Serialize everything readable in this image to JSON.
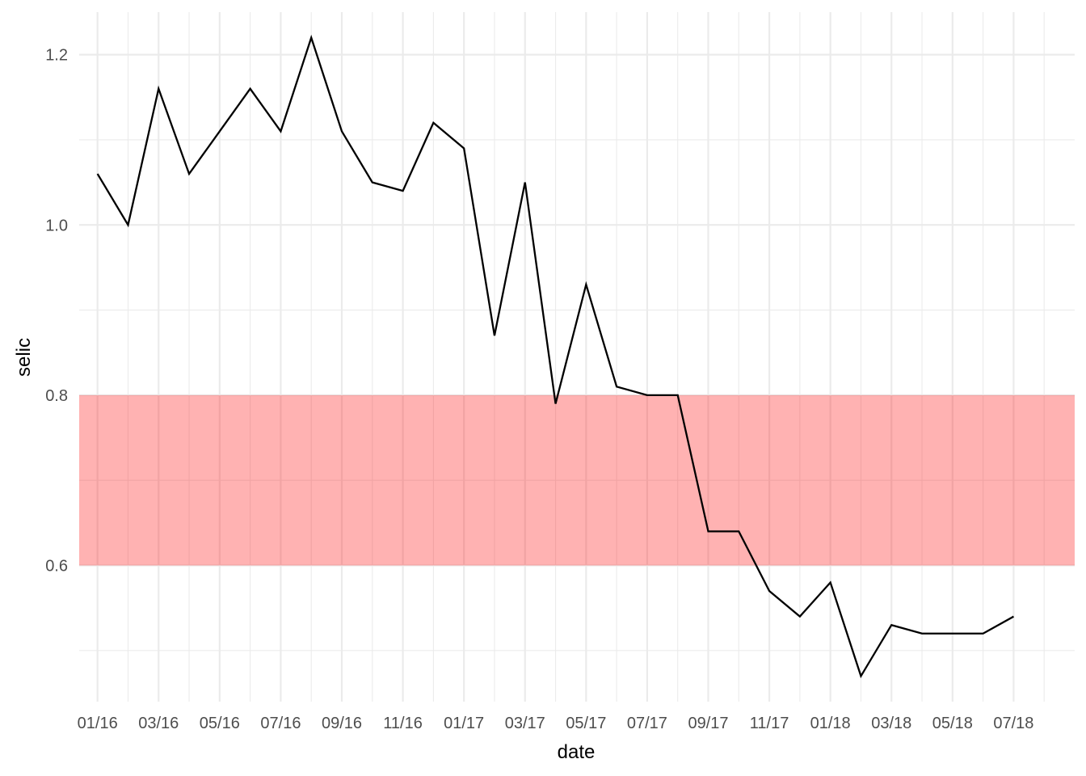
{
  "chart_data": {
    "type": "line",
    "xlabel": "date",
    "ylabel": "selic",
    "ylim": [
      0.44,
      1.25
    ],
    "xlim": [
      "2015-12",
      "2018-08"
    ],
    "y_ticks": [
      0.6,
      0.8,
      1.0,
      1.2
    ],
    "y_tick_labels": [
      "0.6",
      "0.8",
      "1.0",
      "1.2"
    ],
    "x_ticks": [
      "2016-01",
      "2016-03",
      "2016-05",
      "2016-07",
      "2016-09",
      "2016-11",
      "2017-01",
      "2017-03",
      "2017-05",
      "2017-07",
      "2017-09",
      "2017-11",
      "2018-01",
      "2018-03",
      "2018-05",
      "2018-07"
    ],
    "x_tick_labels": [
      "01/16",
      "03/16",
      "05/16",
      "07/16",
      "09/16",
      "11/16",
      "01/17",
      "03/17",
      "05/17",
      "07/17",
      "09/17",
      "11/17",
      "01/18",
      "03/18",
      "05/18",
      "07/18"
    ],
    "grid": true,
    "band": {
      "ymin": 0.6,
      "ymax": 0.8,
      "color": "#ff0000",
      "opacity": 0.3
    },
    "series": [
      {
        "color": "#000000",
        "x": [
          "2016-01",
          "2016-02",
          "2016-03",
          "2016-04",
          "2016-05",
          "2016-06",
          "2016-07",
          "2016-08",
          "2016-09",
          "2016-10",
          "2016-11",
          "2016-12",
          "2017-01",
          "2017-02",
          "2017-03",
          "2017-04",
          "2017-05",
          "2017-06",
          "2017-07",
          "2017-08",
          "2017-09",
          "2017-10",
          "2017-11",
          "2017-12",
          "2018-01",
          "2018-02",
          "2018-03",
          "2018-04",
          "2018-05",
          "2018-06",
          "2018-07"
        ],
        "y": [
          1.06,
          1.0,
          1.16,
          1.06,
          1.11,
          1.16,
          1.11,
          1.22,
          1.11,
          1.05,
          1.04,
          1.12,
          1.09,
          0.87,
          1.05,
          0.79,
          0.93,
          0.81,
          0.8,
          0.8,
          0.64,
          0.64,
          0.57,
          0.54,
          0.58,
          0.47,
          0.53,
          0.52,
          0.52,
          0.52,
          0.54
        ]
      }
    ]
  }
}
